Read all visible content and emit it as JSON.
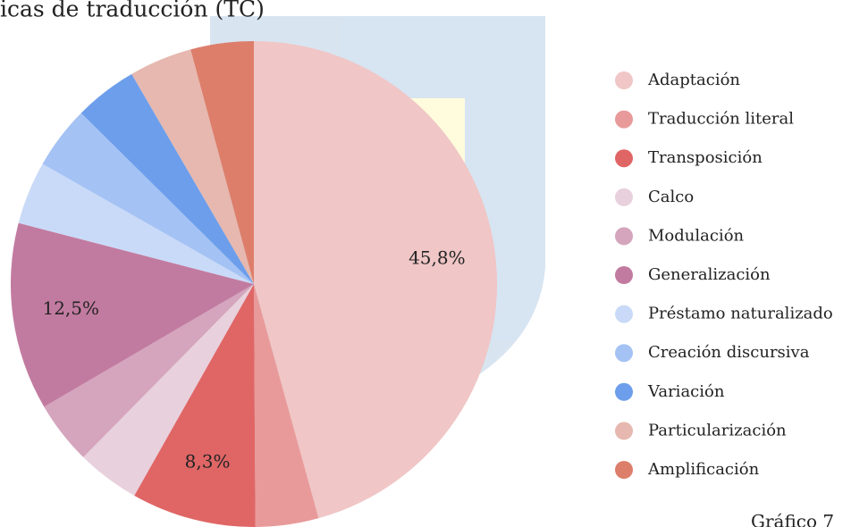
{
  "chart_data": {
    "type": "pie",
    "title": "icas de traducción (TC)",
    "caption": "Gráfico 7",
    "categories": [
      "Adaptación",
      "Traducción literal",
      "Transposición",
      "Calco",
      "Modulación",
      "Generalización",
      "Préstamo naturalizado",
      "Creación discursiva",
      "Variación",
      "Particularización",
      "Amplificación"
    ],
    "values": [
      45.8,
      4.2,
      8.3,
      4.2,
      4.2,
      12.5,
      4.2,
      4.2,
      4.2,
      4.2,
      4.2
    ],
    "value_labels": [
      "45,8%",
      null,
      "8,3%",
      null,
      null,
      "12,5%",
      null,
      null,
      null,
      null,
      null
    ],
    "colors": [
      "#f0c6c6",
      "#e89a9a",
      "#e06666",
      "#e8d0dc",
      "#d4a5bd",
      "#c27ba0",
      "#c9daf8",
      "#a4c2f4",
      "#6d9eeb",
      "#e6b8af",
      "#dd7e6b"
    ],
    "legend": "right"
  }
}
